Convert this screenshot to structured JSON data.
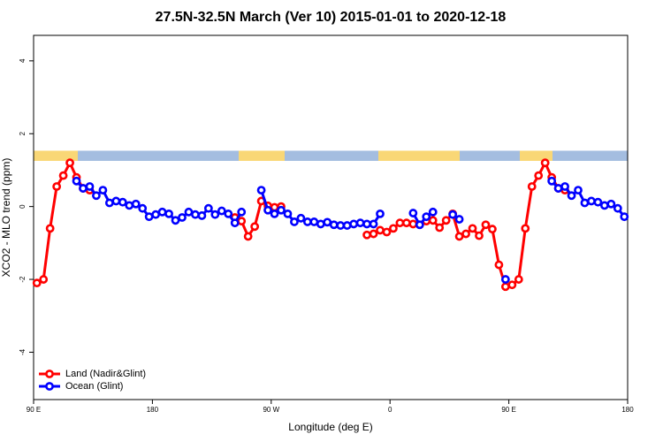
{
  "chart_data": {
    "type": "line",
    "title": "27.5N-32.5N March (Ver 10)   2015-01-01 to 2020-12-18",
    "x_label": "Longitude (deg E)",
    "y_label": "XCO2 - MLO trend (ppm)",
    "x": [
      92.5,
      97.5,
      102.5,
      107.5,
      112.5,
      117.5,
      122.5,
      127.5,
      132.5,
      137.5,
      142.5,
      147.5,
      152.5,
      157.5,
      162.5,
      167.5,
      172.5,
      177.5,
      182.5,
      187.5,
      192.5,
      197.5,
      202.5,
      207.5,
      212.5,
      217.5,
      222.5,
      227.5,
      232.5,
      237.5,
      242.5,
      247.5,
      252.5,
      257.5,
      262.5,
      267.5,
      272.5,
      277.5,
      282.5,
      287.5,
      292.5,
      297.5,
      302.5,
      307.5,
      312.5,
      317.5,
      322.5,
      327.5,
      332.5,
      337.5,
      342.5,
      347.5,
      352.5,
      357.5,
      362.5,
      367.5,
      372.5,
      377.5,
      382.5,
      387.5,
      392.5,
      397.5,
      402.5,
      407.5,
      412.5,
      417.5,
      422.5,
      427.5,
      432.5,
      437.5,
      442.5,
      447.5,
      452.5,
      457.5,
      462.5,
      467.5,
      472.5,
      477.5,
      482.5,
      487.5,
      492.5,
      497.5,
      502.5,
      507.5,
      512.5,
      517.5,
      522.5,
      527.5,
      532.5,
      537.5
    ],
    "series": [
      {
        "name": "Land (Nadir&Glint)",
        "color": "#ff0000",
        "values": [
          -2.1,
          -2.0,
          -0.6,
          0.55,
          0.85,
          1.2,
          0.8,
          0.5,
          0.45,
          null,
          null,
          null,
          null,
          null,
          null,
          null,
          null,
          null,
          null,
          null,
          null,
          null,
          null,
          null,
          null,
          null,
          null,
          null,
          null,
          null,
          -0.3,
          -0.4,
          -0.82,
          -0.55,
          0.15,
          0.02,
          -0.02,
          0.0,
          null,
          null,
          null,
          null,
          null,
          null,
          null,
          null,
          null,
          null,
          null,
          null,
          -0.78,
          -0.75,
          -0.65,
          -0.7,
          -0.6,
          -0.45,
          -0.45,
          -0.48,
          -0.5,
          -0.4,
          -0.38,
          -0.58,
          -0.38,
          -0.2,
          -0.82,
          -0.75,
          -0.6,
          -0.8,
          -0.5,
          -0.62,
          -1.6,
          -2.2,
          -2.15,
          -2.0,
          -0.6,
          0.55,
          0.85,
          1.2,
          0.8,
          0.5,
          0.45,
          null,
          null,
          null,
          null,
          null,
          null,
          null,
          null,
          null
        ]
      },
      {
        "name": "Ocean (Glint)",
        "color": "#0000ff",
        "values": [
          null,
          null,
          null,
          null,
          null,
          null,
          0.7,
          0.5,
          0.55,
          0.3,
          0.45,
          0.1,
          0.15,
          0.12,
          0.03,
          0.07,
          -0.05,
          -0.28,
          -0.22,
          -0.15,
          -0.2,
          -0.38,
          -0.3,
          -0.15,
          -0.22,
          -0.25,
          -0.05,
          -0.22,
          -0.12,
          -0.2,
          -0.45,
          -0.15,
          null,
          null,
          0.45,
          -0.1,
          -0.2,
          -0.1,
          -0.2,
          -0.42,
          -0.32,
          -0.42,
          -0.42,
          -0.48,
          -0.43,
          -0.5,
          -0.52,
          -0.52,
          -0.48,
          -0.45,
          -0.48,
          -0.48,
          -0.2,
          null,
          null,
          null,
          null,
          -0.18,
          -0.5,
          -0.28,
          -0.15,
          null,
          null,
          -0.22,
          -0.35,
          null,
          null,
          null,
          null,
          null,
          null,
          -2.0,
          null,
          null,
          null,
          null,
          null,
          null,
          0.7,
          0.5,
          0.55,
          0.3,
          0.45,
          0.1,
          0.15,
          0.12,
          0.03,
          0.07,
          -0.05,
          -0.28
        ]
      }
    ],
    "xlim": [
      90,
      540
    ],
    "xticks": [
      {
        "value": 90,
        "label": "90 E"
      },
      180,
      {
        "value": 270,
        "label": "90 W"
      },
      {
        "value": 360,
        "label": "0"
      },
      {
        "value": 450,
        "label": "90 E"
      },
      {
        "value": 540,
        "label": "180"
      }
    ],
    "ylim": [
      -5.3,
      4.7
    ],
    "yticks": [
      -4,
      -2,
      0,
      2,
      4
    ],
    "legend": "bottomleft",
    "grid": false
  }
}
